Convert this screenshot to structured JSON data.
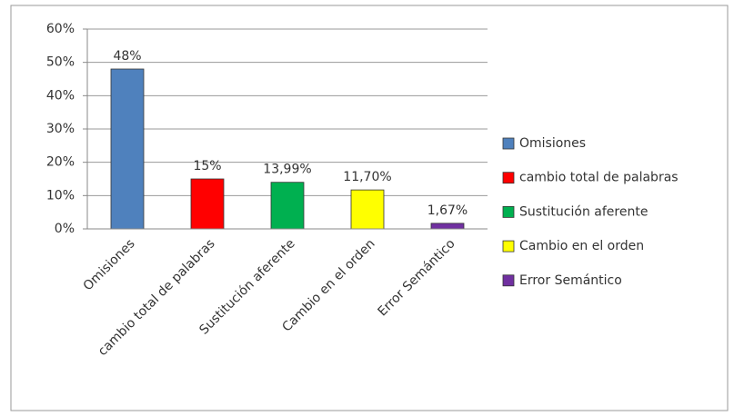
{
  "chart_data": {
    "type": "bar",
    "categories": [
      "Omisiones",
      "cambio total de palabras",
      "Sustitución aferente",
      "Cambio en el orden",
      "Error Semántico"
    ],
    "values": [
      48,
      15,
      13.99,
      11.7,
      1.67
    ],
    "value_labels": [
      "48%",
      "15%",
      "13,99%",
      "11,70%",
      "1,67%"
    ],
    "colors": [
      "#4f81bd",
      "#ff0000",
      "#00b050",
      "#ffff00",
      "#7030a0"
    ],
    "ylim": [
      0,
      60
    ],
    "yticks": [
      {
        "value": 0,
        "label": "0%"
      },
      {
        "value": 10,
        "label": "10%"
      },
      {
        "value": 20,
        "label": "20%"
      },
      {
        "value": 30,
        "label": "30%"
      },
      {
        "value": 40,
        "label": "40%"
      },
      {
        "value": 50,
        "label": "50%"
      },
      {
        "value": 60,
        "label": "60%"
      }
    ],
    "grid": true,
    "legend": "right"
  }
}
